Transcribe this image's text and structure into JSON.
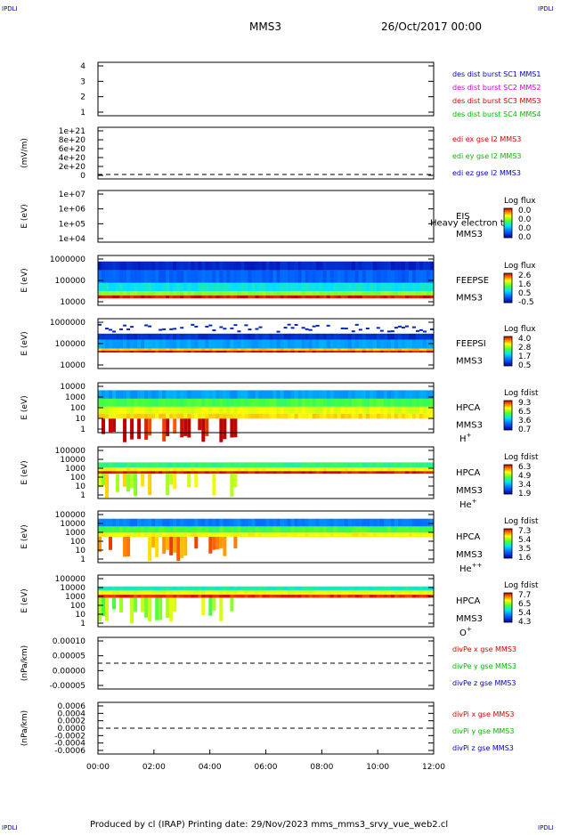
{
  "header": {
    "corner": "IPDLI",
    "title": "MMS3",
    "date": "26/Oct/2017 00:00"
  },
  "footer": {
    "text": "Produced by cl (IRAP)   Printing date: 29/Nov/2023   mms_mms3_srvy_vue_web2.cl"
  },
  "x_axis": {
    "ticks": [
      "00:00",
      "02:00",
      "04:00",
      "06:00",
      "08:00",
      "10:00",
      "12:00"
    ]
  },
  "chart_data": [
    {
      "type": "line",
      "ylabel": "",
      "ylim": [
        0.5,
        4.5
      ],
      "yticks": [
        "4",
        "3",
        "2",
        "1"
      ],
      "legend": [
        {
          "label": "des dist burst SC1 MMS1",
          "color": "#0000cc"
        },
        {
          "label": "des dist burst SC2 MMS2",
          "color": "#cc00cc"
        },
        {
          "label": "des dist burst SC3 MMS3",
          "color": "#dd0000"
        },
        {
          "label": "des dist burst SC4 MMS4",
          "color": "#00bb00"
        }
      ]
    },
    {
      "type": "line",
      "ylabel": "(mV/m)",
      "ylim": [
        -1e+20,
        1.05e+21
      ],
      "yticks": [
        "1e+21",
        "8e+20",
        "6e+20",
        "4e+20",
        "2e+20",
        "0"
      ],
      "legend": [
        {
          "label": "edi ex gse l2 MMS3",
          "color": "#dd0000"
        },
        {
          "label": "edi ey gse l2 MMS3",
          "color": "#00bb00"
        },
        {
          "label": "edi ez gse l2 MMS3",
          "color": "#0000cc"
        }
      ]
    },
    {
      "type": "heatmap",
      "ylabel": "E (eV)",
      "yticks": [
        "1e+07",
        "1e+06",
        "1e+05",
        "1e+04"
      ],
      "instrument": [
        "EIS",
        "MMS3"
      ],
      "overlay": "Heavy electron to",
      "colorbar": {
        "title": "Log flux",
        "ticks": [
          "0.0",
          "0.0",
          "0.0",
          "0.0"
        ]
      }
    },
    {
      "type": "heatmap",
      "ylabel": "E (eV)",
      "yticks": [
        "1000000",
        "100000",
        "10000"
      ],
      "instrument": [
        "FEEPSE",
        "MMS3"
      ],
      "colorbar": {
        "title": "Log flux",
        "ticks": [
          "2.6",
          "1.6",
          "0.5",
          "-0.5"
        ]
      }
    },
    {
      "type": "heatmap",
      "ylabel": "E (eV)",
      "yticks": [
        "1000000",
        "100000",
        "10000"
      ],
      "instrument": [
        "FEEPSI",
        "MMS3"
      ],
      "colorbar": {
        "title": "Log flux",
        "ticks": [
          "4.0",
          "2.8",
          "1.7",
          "0.5"
        ]
      }
    },
    {
      "type": "heatmap",
      "ylabel": "E (eV)",
      "yticks": [
        "10000",
        "1000",
        "100",
        "10",
        "1"
      ],
      "instrument": [
        "HPCA",
        "MMS3"
      ],
      "species": {
        "base": "H",
        "sup": "+"
      },
      "colorbar": {
        "title": "Log fdist",
        "ticks": [
          "9.3",
          "6.5",
          "3.6",
          "0.7"
        ]
      }
    },
    {
      "type": "heatmap",
      "ylabel": "E (eV)",
      "yticks": [
        "100000",
        "10000",
        "1000",
        "100",
        "10",
        "1"
      ],
      "instrument": [
        "HPCA",
        "MMS3"
      ],
      "species": {
        "base": "He",
        "sup": "+"
      },
      "colorbar": {
        "title": "Log fdist",
        "ticks": [
          "6.3",
          "4.9",
          "3.4",
          "1.9"
        ]
      }
    },
    {
      "type": "heatmap",
      "ylabel": "E (eV)",
      "yticks": [
        "100000",
        "10000",
        "1000",
        "100",
        "10",
        "1"
      ],
      "instrument": [
        "HPCA",
        "MMS3"
      ],
      "species": {
        "base": "He",
        "sup": "++"
      },
      "colorbar": {
        "title": "Log fdist",
        "ticks": [
          "7.3",
          "5.4",
          "3.5",
          "1.6"
        ]
      }
    },
    {
      "type": "heatmap",
      "ylabel": "E (eV)",
      "yticks": [
        "100000",
        "10000",
        "1000",
        "100",
        "10",
        "1"
      ],
      "instrument": [
        "HPCA",
        "MMS3"
      ],
      "species": {
        "base": "O",
        "sup": "+"
      },
      "colorbar": {
        "title": "Log fdist",
        "ticks": [
          "7.7",
          "6.5",
          "5.4",
          "4.3"
        ]
      }
    },
    {
      "type": "line",
      "ylabel": "(nPa/km)",
      "ylim": [
        -0.0001,
        0.0001
      ],
      "yticks": [
        "0.00010",
        "0.00005",
        "0.00000",
        "-0.00005"
      ],
      "legend": [
        {
          "label": "divPe x gse MMS3",
          "color": "#dd0000"
        },
        {
          "label": "divPe y gse MMS3",
          "color": "#00bb00"
        },
        {
          "label": "divPe z gse MMS3",
          "color": "#0000cc"
        }
      ]
    },
    {
      "type": "line",
      "ylabel": "(nPa/km)",
      "ylim": [
        -0.0007,
        0.0007
      ],
      "yticks": [
        "0.0006",
        "0.0004",
        "0.0002",
        "0.0000",
        "-0.0002",
        "-0.0004",
        "-0.0006"
      ],
      "legend": [
        {
          "label": "divPi x gse MMS3",
          "color": "#dd0000"
        },
        {
          "label": "divPi y gse MMS3",
          "color": "#00bb00"
        },
        {
          "label": "divPi z gse MMS3",
          "color": "#0000cc"
        }
      ]
    }
  ]
}
